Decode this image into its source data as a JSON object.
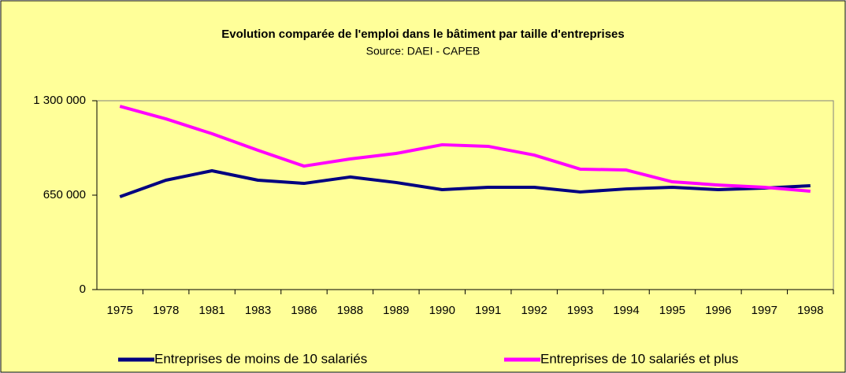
{
  "chart_data": {
    "type": "line",
    "title": "Evolution comparée de l'emploi dans le bâtiment par taille d'entreprises",
    "subtitle": "Source: DAEI - CAPEB",
    "categories": [
      "1975",
      "1978",
      "1981",
      "1983",
      "1986",
      "1988",
      "1989",
      "1990",
      "1991",
      "1992",
      "1993",
      "1994",
      "1995",
      "1996",
      "1997",
      "1998"
    ],
    "series": [
      {
        "name": "Entreprises de moins de 10 salariés",
        "color": "#000080",
        "values": [
          639000,
          753000,
          818000,
          753000,
          731000,
          775000,
          737000,
          688000,
          704000,
          704000,
          672000,
          693000,
          704000,
          688000,
          699000,
          715000
        ]
      },
      {
        "name": "Entreprises de 10 salariés et plus",
        "color": "#ff00ff",
        "values": [
          1262000,
          1175000,
          1073000,
          959000,
          850000,
          899000,
          937000,
          997000,
          986000,
          926000,
          829000,
          823000,
          742000,
          720000,
          704000,
          677000
        ]
      }
    ],
    "ylim": [
      0,
      1300000
    ],
    "yticks": [
      0,
      {
        "value": 650000,
        "label": "650 000"
      },
      {
        "value": 1300000,
        "label": "1 300 000"
      }
    ],
    "grid": false
  }
}
